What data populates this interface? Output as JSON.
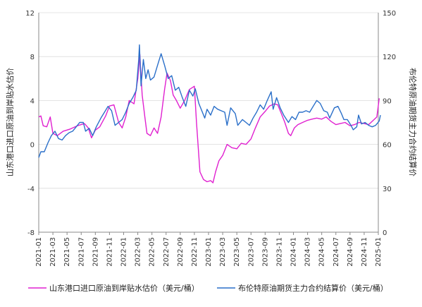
{
  "chart_data": {
    "type": "line",
    "title": "",
    "x_start": "2021-01",
    "x_end": "2025-01",
    "x_ticks": [
      "2021-01",
      "2021-03",
      "2021-05",
      "2021-07",
      "2021-09",
      "2021-11",
      "2022-01",
      "2022-03",
      "2022-05",
      "2022-07",
      "2022-09",
      "2022-11",
      "2023-01",
      "2023-03",
      "2023-05",
      "2023-07",
      "2023-09",
      "2023-11",
      "2024-01",
      "2024-03",
      "2024-05",
      "2024-07",
      "2024-09",
      "2024-11",
      "2025-01"
    ],
    "y_left": {
      "label": "山东港口进口原油到岸贴水估价",
      "min": -8,
      "max": 12,
      "ticks": [
        -8,
        -4,
        0,
        4,
        8,
        12
      ]
    },
    "y_right": {
      "label": "布伦特原油期货主力合约结算价",
      "min": 0,
      "max": 150,
      "ticks": [
        0,
        30,
        60,
        90,
        120,
        150
      ]
    },
    "grid": true,
    "legend_position": "bottom",
    "series": [
      {
        "name": "山东港口进口原油到岸贴水估价（美元/桶）",
        "axis": "left",
        "color": "#e020d0",
        "points": [
          [
            "2021-01-01",
            2.5
          ],
          [
            "2021-01-10",
            2.6
          ],
          [
            "2021-01-20",
            1.7
          ],
          [
            "2021-02-05",
            1.6
          ],
          [
            "2021-02-20",
            2.5
          ],
          [
            "2021-03-01",
            1.0
          ],
          [
            "2021-03-20",
            0.8
          ],
          [
            "2021-04-15",
            1.2
          ],
          [
            "2021-05-15",
            1.4
          ],
          [
            "2021-06-15",
            1.7
          ],
          [
            "2021-07-15",
            1.9
          ],
          [
            "2021-08-01",
            1.5
          ],
          [
            "2021-08-15",
            0.6
          ],
          [
            "2021-09-01",
            1.3
          ],
          [
            "2021-09-20",
            1.6
          ],
          [
            "2021-10-15",
            2.6
          ],
          [
            "2021-11-01",
            3.5
          ],
          [
            "2021-11-20",
            3.6
          ],
          [
            "2021-12-10",
            2.0
          ],
          [
            "2021-12-25",
            1.5
          ],
          [
            "2022-01-10",
            2.5
          ],
          [
            "2022-01-25",
            4.0
          ],
          [
            "2022-02-15",
            3.7
          ],
          [
            "2022-03-01",
            6.0
          ],
          [
            "2022-03-10",
            8.2
          ],
          [
            "2022-03-20",
            4.5
          ],
          [
            "2022-04-01",
            2.5
          ],
          [
            "2022-04-10",
            1.0
          ],
          [
            "2022-04-25",
            0.8
          ],
          [
            "2022-05-10",
            1.5
          ],
          [
            "2022-05-25",
            1.0
          ],
          [
            "2022-06-10",
            2.5
          ],
          [
            "2022-06-25",
            5.0
          ],
          [
            "2022-07-05",
            6.5
          ],
          [
            "2022-07-20",
            5.8
          ],
          [
            "2022-08-01",
            4.5
          ],
          [
            "2022-08-15",
            4.0
          ],
          [
            "2022-09-01",
            3.3
          ],
          [
            "2022-09-20",
            4.0
          ],
          [
            "2022-10-10",
            5.0
          ],
          [
            "2022-11-01",
            5.3
          ],
          [
            "2022-11-10",
            2.0
          ],
          [
            "2022-11-25",
            -2.5
          ],
          [
            "2022-12-10",
            -3.2
          ],
          [
            "2022-12-25",
            -3.4
          ],
          [
            "2023-01-10",
            -3.3
          ],
          [
            "2023-01-20",
            -3.5
          ],
          [
            "2023-02-01",
            -2.5
          ],
          [
            "2023-02-15",
            -1.5
          ],
          [
            "2023-03-01",
            -1.0
          ],
          [
            "2023-03-20",
            0.0
          ],
          [
            "2023-04-10",
            -0.3
          ],
          [
            "2023-05-01",
            -0.4
          ],
          [
            "2023-05-20",
            0.1
          ],
          [
            "2023-06-10",
            0.0
          ],
          [
            "2023-07-01",
            0.5
          ],
          [
            "2023-07-20",
            1.5
          ],
          [
            "2023-08-10",
            2.5
          ],
          [
            "2023-09-01",
            3.0
          ],
          [
            "2023-09-20",
            3.5
          ],
          [
            "2023-10-10",
            3.7
          ],
          [
            "2023-10-25",
            3.6
          ],
          [
            "2023-11-10",
            2.8
          ],
          [
            "2023-11-25",
            2.0
          ],
          [
            "2023-12-10",
            1.0
          ],
          [
            "2023-12-20",
            0.8
          ],
          [
            "2024-01-05",
            1.5
          ],
          [
            "2024-01-20",
            1.8
          ],
          [
            "2024-02-10",
            2.0
          ],
          [
            "2024-03-01",
            2.2
          ],
          [
            "2024-03-20",
            2.3
          ],
          [
            "2024-04-10",
            2.4
          ],
          [
            "2024-05-01",
            2.3
          ],
          [
            "2024-05-20",
            2.5
          ],
          [
            "2024-06-10",
            2.1
          ],
          [
            "2024-07-01",
            1.8
          ],
          [
            "2024-07-20",
            1.9
          ],
          [
            "2024-08-10",
            2.0
          ],
          [
            "2024-09-01",
            1.7
          ],
          [
            "2024-09-20",
            1.8
          ],
          [
            "2024-10-10",
            2.0
          ],
          [
            "2024-11-01",
            1.9
          ],
          [
            "2024-11-20",
            1.8
          ],
          [
            "2024-12-10",
            2.2
          ],
          [
            "2024-12-25",
            2.5
          ],
          [
            "2025-01-05",
            4.2
          ]
        ]
      },
      {
        "name": "布伦特原油期货主力合约结算价（美元/桶）",
        "axis": "right",
        "color": "#2a6fc9",
        "points": [
          [
            "2021-01-01",
            51
          ],
          [
            "2021-01-10",
            55
          ],
          [
            "2021-01-25",
            55
          ],
          [
            "2021-02-10",
            61
          ],
          [
            "2021-02-25",
            66
          ],
          [
            "2021-03-10",
            69
          ],
          [
            "2021-03-25",
            64
          ],
          [
            "2021-04-10",
            63
          ],
          [
            "2021-04-25",
            66
          ],
          [
            "2021-05-10",
            68
          ],
          [
            "2021-05-25",
            69
          ],
          [
            "2021-06-10",
            72
          ],
          [
            "2021-06-25",
            75
          ],
          [
            "2021-07-10",
            75
          ],
          [
            "2021-07-20",
            69
          ],
          [
            "2021-08-05",
            71
          ],
          [
            "2021-08-20",
            66
          ],
          [
            "2021-09-05",
            72
          ],
          [
            "2021-09-25",
            78
          ],
          [
            "2021-10-10",
            82
          ],
          [
            "2021-10-25",
            86
          ],
          [
            "2021-11-10",
            83
          ],
          [
            "2021-11-25",
            73
          ],
          [
            "2021-12-10",
            75
          ],
          [
            "2021-12-25",
            77
          ],
          [
            "2022-01-10",
            82
          ],
          [
            "2022-01-25",
            88
          ],
          [
            "2022-02-10",
            92
          ],
          [
            "2022-02-25",
            97
          ],
          [
            "2022-03-05",
            118
          ],
          [
            "2022-03-08",
            128
          ],
          [
            "2022-03-15",
            100
          ],
          [
            "2022-03-25",
            118
          ],
          [
            "2022-04-05",
            105
          ],
          [
            "2022-04-15",
            111
          ],
          [
            "2022-04-25",
            104
          ],
          [
            "2022-05-10",
            106
          ],
          [
            "2022-05-25",
            114
          ],
          [
            "2022-06-10",
            122
          ],
          [
            "2022-06-25",
            114
          ],
          [
            "2022-07-10",
            105
          ],
          [
            "2022-07-25",
            107
          ],
          [
            "2022-08-10",
            97
          ],
          [
            "2022-08-25",
            99
          ],
          [
            "2022-09-10",
            92
          ],
          [
            "2022-09-25",
            86
          ],
          [
            "2022-10-10",
            97
          ],
          [
            "2022-10-25",
            93
          ],
          [
            "2022-11-05",
            98
          ],
          [
            "2022-11-20",
            88
          ],
          [
            "2022-12-05",
            82
          ],
          [
            "2022-12-15",
            78
          ],
          [
            "2022-12-25",
            84
          ],
          [
            "2023-01-10",
            80
          ],
          [
            "2023-01-25",
            86
          ],
          [
            "2023-02-10",
            84
          ],
          [
            "2023-02-25",
            83
          ],
          [
            "2023-03-10",
            82
          ],
          [
            "2023-03-20",
            73
          ],
          [
            "2023-04-05",
            85
          ],
          [
            "2023-04-25",
            81
          ],
          [
            "2023-05-05",
            73
          ],
          [
            "2023-05-25",
            77
          ],
          [
            "2023-06-10",
            75
          ],
          [
            "2023-06-25",
            73
          ],
          [
            "2023-07-10",
            78
          ],
          [
            "2023-07-25",
            82
          ],
          [
            "2023-08-10",
            87
          ],
          [
            "2023-08-25",
            84
          ],
          [
            "2023-09-10",
            90
          ],
          [
            "2023-09-27",
            96
          ],
          [
            "2023-10-05",
            84
          ],
          [
            "2023-10-20",
            92
          ],
          [
            "2023-11-05",
            85
          ],
          [
            "2023-11-20",
            80
          ],
          [
            "2023-12-10",
            75
          ],
          [
            "2023-12-25",
            79
          ],
          [
            "2024-01-10",
            77
          ],
          [
            "2024-01-25",
            82
          ],
          [
            "2024-02-10",
            82
          ],
          [
            "2024-02-25",
            83
          ],
          [
            "2024-03-10",
            82
          ],
          [
            "2024-03-25",
            86
          ],
          [
            "2024-04-10",
            90
          ],
          [
            "2024-04-25",
            88
          ],
          [
            "2024-05-10",
            83
          ],
          [
            "2024-05-25",
            82
          ],
          [
            "2024-06-05",
            78
          ],
          [
            "2024-06-25",
            85
          ],
          [
            "2024-07-10",
            86
          ],
          [
            "2024-07-25",
            81
          ],
          [
            "2024-08-05",
            77
          ],
          [
            "2024-08-20",
            77
          ],
          [
            "2024-09-05",
            73
          ],
          [
            "2024-09-15",
            70
          ],
          [
            "2024-09-30",
            72
          ],
          [
            "2024-10-07",
            80
          ],
          [
            "2024-10-20",
            74
          ],
          [
            "2024-11-05",
            75
          ],
          [
            "2024-11-20",
            73
          ],
          [
            "2024-12-05",
            72
          ],
          [
            "2024-12-20",
            73
          ],
          [
            "2025-01-05",
            76
          ],
          [
            "2025-01-10",
            80
          ]
        ]
      }
    ]
  }
}
